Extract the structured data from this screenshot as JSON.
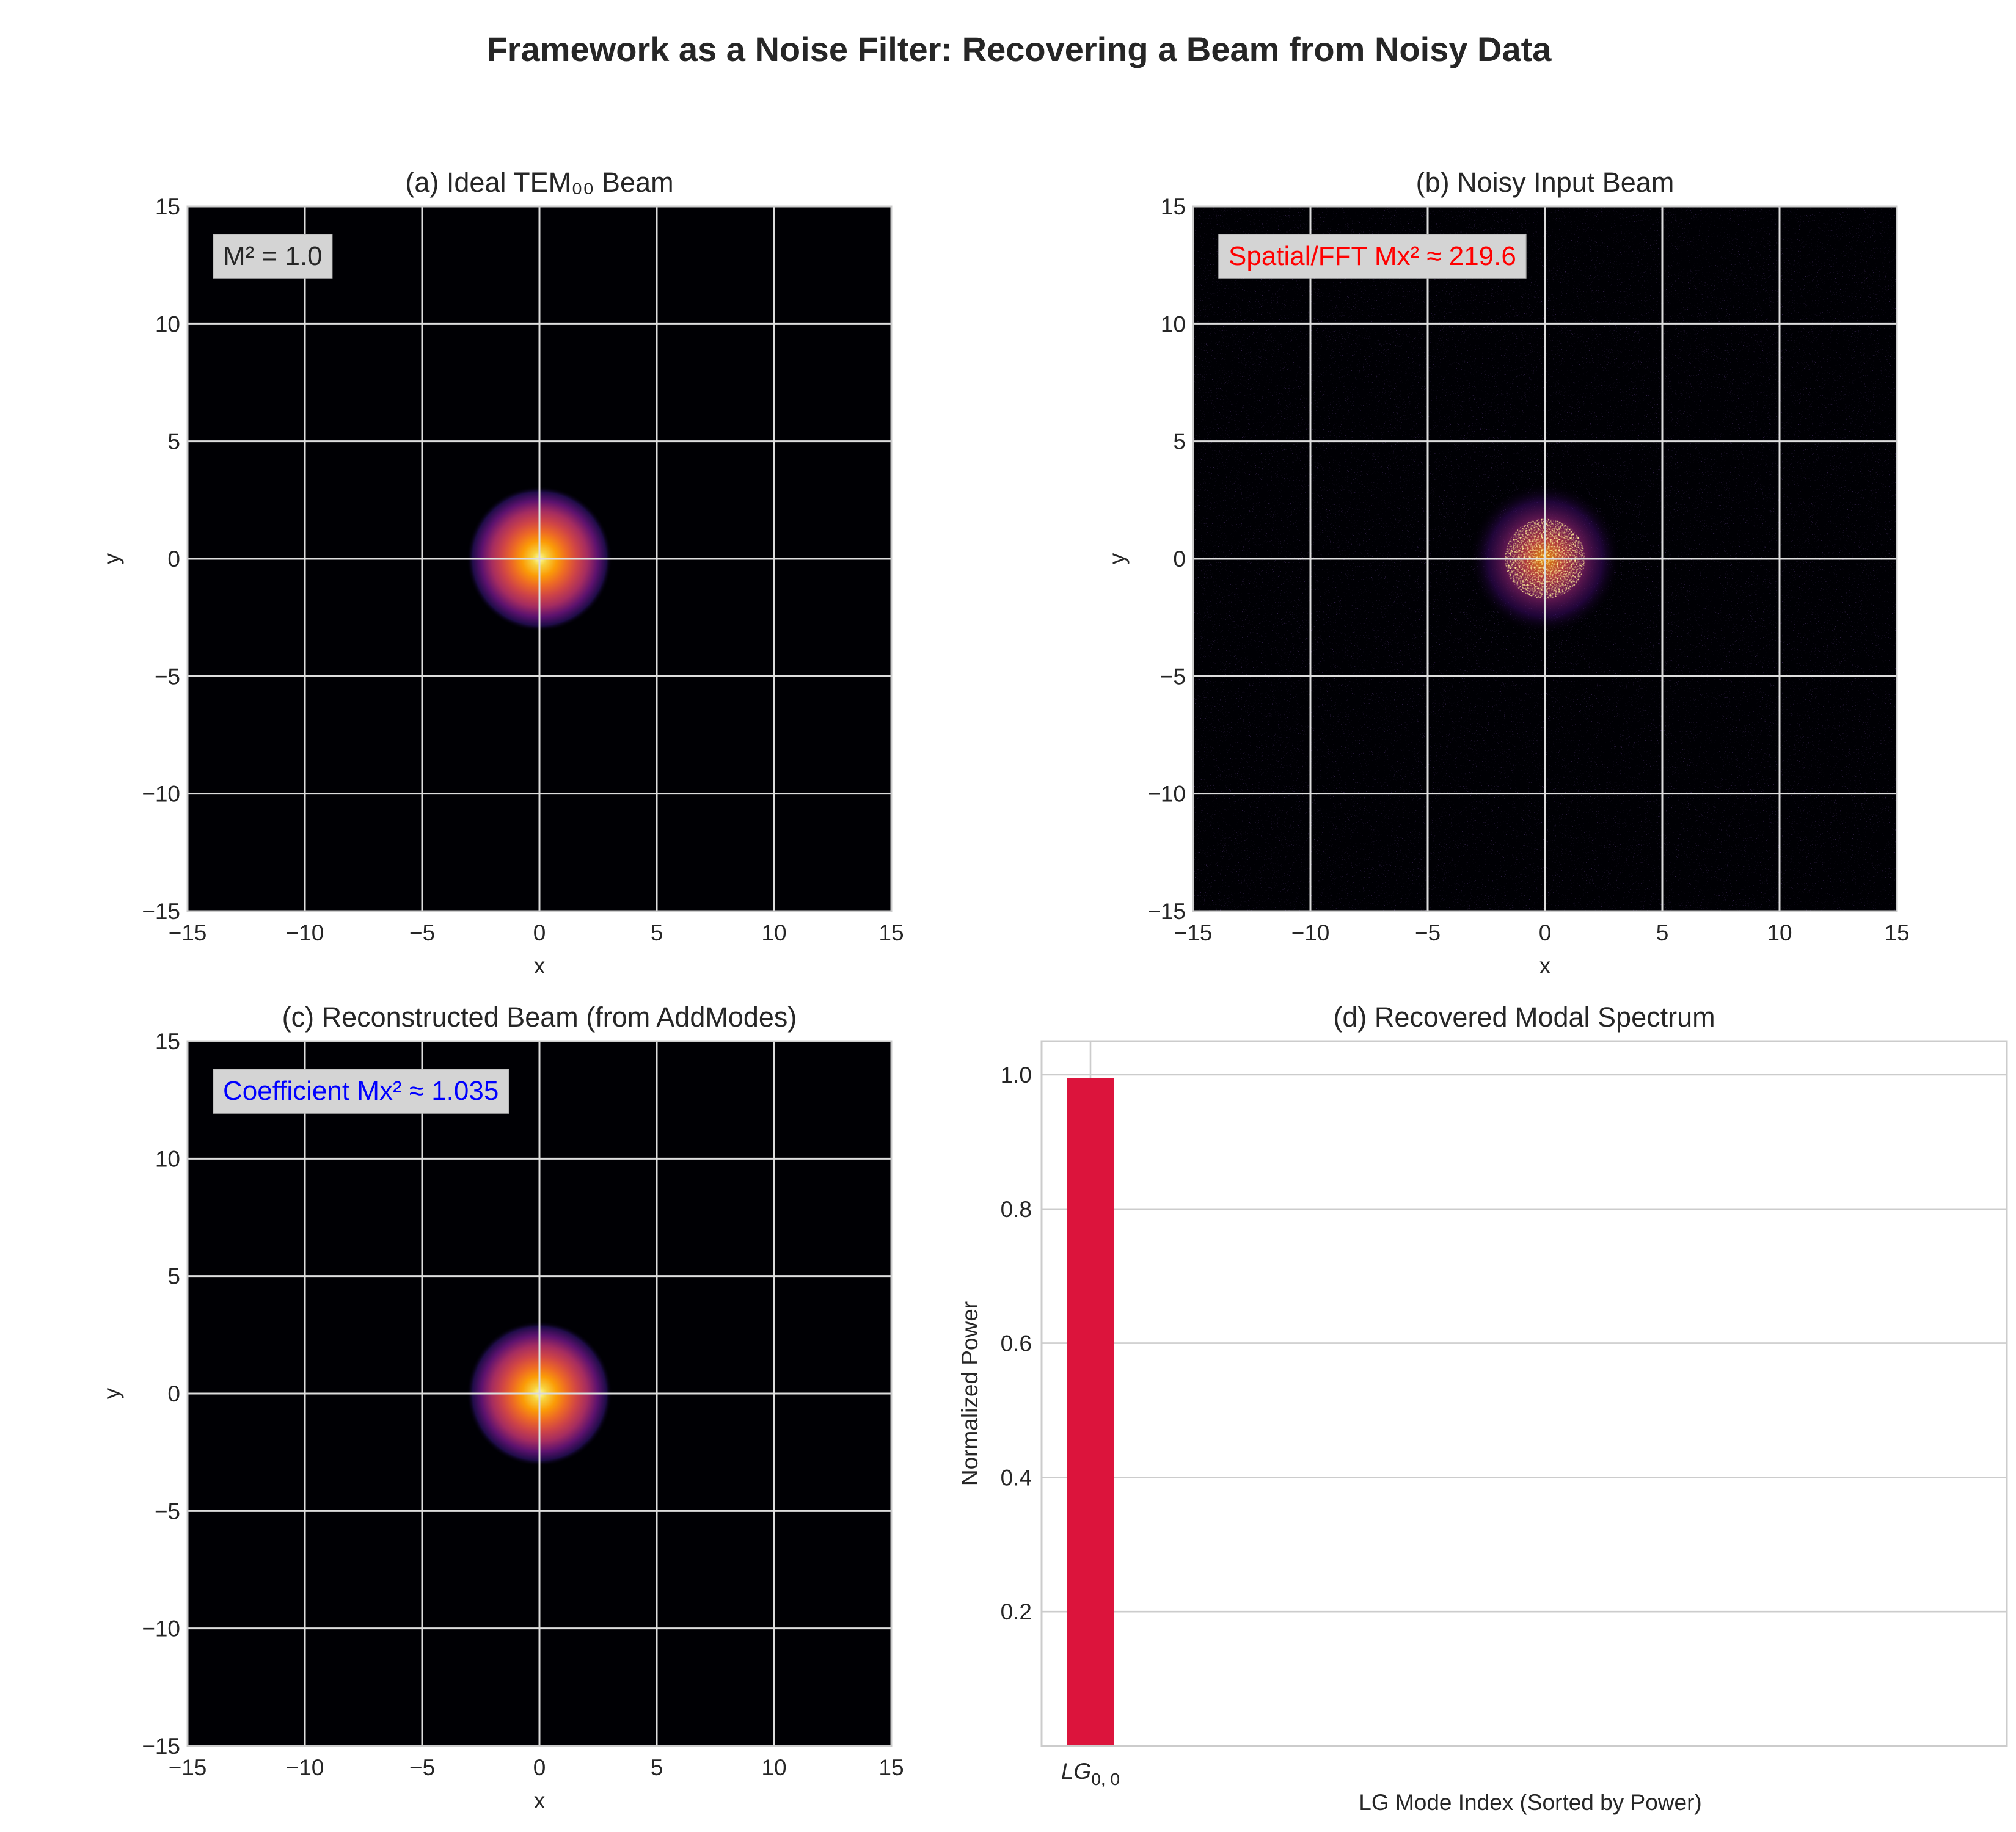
{
  "figure": {
    "suptitle": "Framework as a Noise Filter: Recovering a Beam from Noisy Data"
  },
  "chart_data": [
    {
      "type": "heatmap",
      "panel": "a",
      "title": "(a) Ideal TEM₀₀ Beam",
      "xlabel": "x",
      "ylabel": "y",
      "xlim": [
        -15,
        15
      ],
      "ylim": [
        -15,
        15
      ],
      "xticks": [
        -15,
        -10,
        -5,
        0,
        5,
        10,
        15
      ],
      "yticks": [
        -15,
        -10,
        -5,
        0,
        5,
        10,
        15
      ],
      "colormap": "inferno",
      "beam": {
        "center": [
          0,
          0
        ],
        "radius_1e2": 2.0,
        "noise": "none"
      },
      "annotation": {
        "text": "M² = 1.0",
        "color": "#262626",
        "box": "#d4d4d4"
      },
      "grid": true
    },
    {
      "type": "heatmap",
      "panel": "b",
      "title": "(b) Noisy Input Beam",
      "xlabel": "x",
      "ylabel": "y",
      "xlim": [
        -15,
        15
      ],
      "ylim": [
        -15,
        15
      ],
      "xticks": [
        -15,
        -10,
        -5,
        0,
        5,
        10,
        15
      ],
      "yticks": [
        -15,
        -10,
        -5,
        0,
        5,
        10,
        15
      ],
      "colormap": "inferno",
      "beam": {
        "center": [
          0,
          0
        ],
        "radius_1e2": 2.0,
        "noise": "speckle"
      },
      "annotation": {
        "text": "Spatial/FFT Mx² ≈ 219.6",
        "color": "#ff0000",
        "box": "#d4d4d4"
      },
      "grid": true
    },
    {
      "type": "heatmap",
      "panel": "c",
      "title": "(c) Reconstructed Beam (from AddModes)",
      "xlabel": "x",
      "ylabel": "y",
      "xlim": [
        -15,
        15
      ],
      "ylim": [
        -15,
        15
      ],
      "xticks": [
        -15,
        -10,
        -5,
        0,
        5,
        10,
        15
      ],
      "yticks": [
        -15,
        -10,
        -5,
        0,
        5,
        10,
        15
      ],
      "colormap": "inferno",
      "beam": {
        "center": [
          0,
          0
        ],
        "radius_1e2": 2.0,
        "noise": "none"
      },
      "annotation": {
        "text": "Coefficient Mx² ≈ 1.035",
        "color": "#0000ff",
        "box": "#d4d4d4"
      },
      "grid": true
    },
    {
      "type": "bar",
      "panel": "d",
      "title": "(d) Recovered Modal Spectrum",
      "xlabel": "LG Mode Index (Sorted by Power)",
      "ylabel": "Normalized Power",
      "categories": [
        "LG0,0"
      ],
      "values": [
        0.995
      ],
      "bar_color": "#dc143c",
      "ylim": [
        0,
        1.05
      ],
      "yticks": [
        0.2,
        0.4,
        0.6,
        0.8,
        1.0
      ],
      "ytick_labels": [
        "0.2",
        "0.4",
        "0.6",
        "0.8",
        "1.0"
      ],
      "grid": true
    }
  ]
}
